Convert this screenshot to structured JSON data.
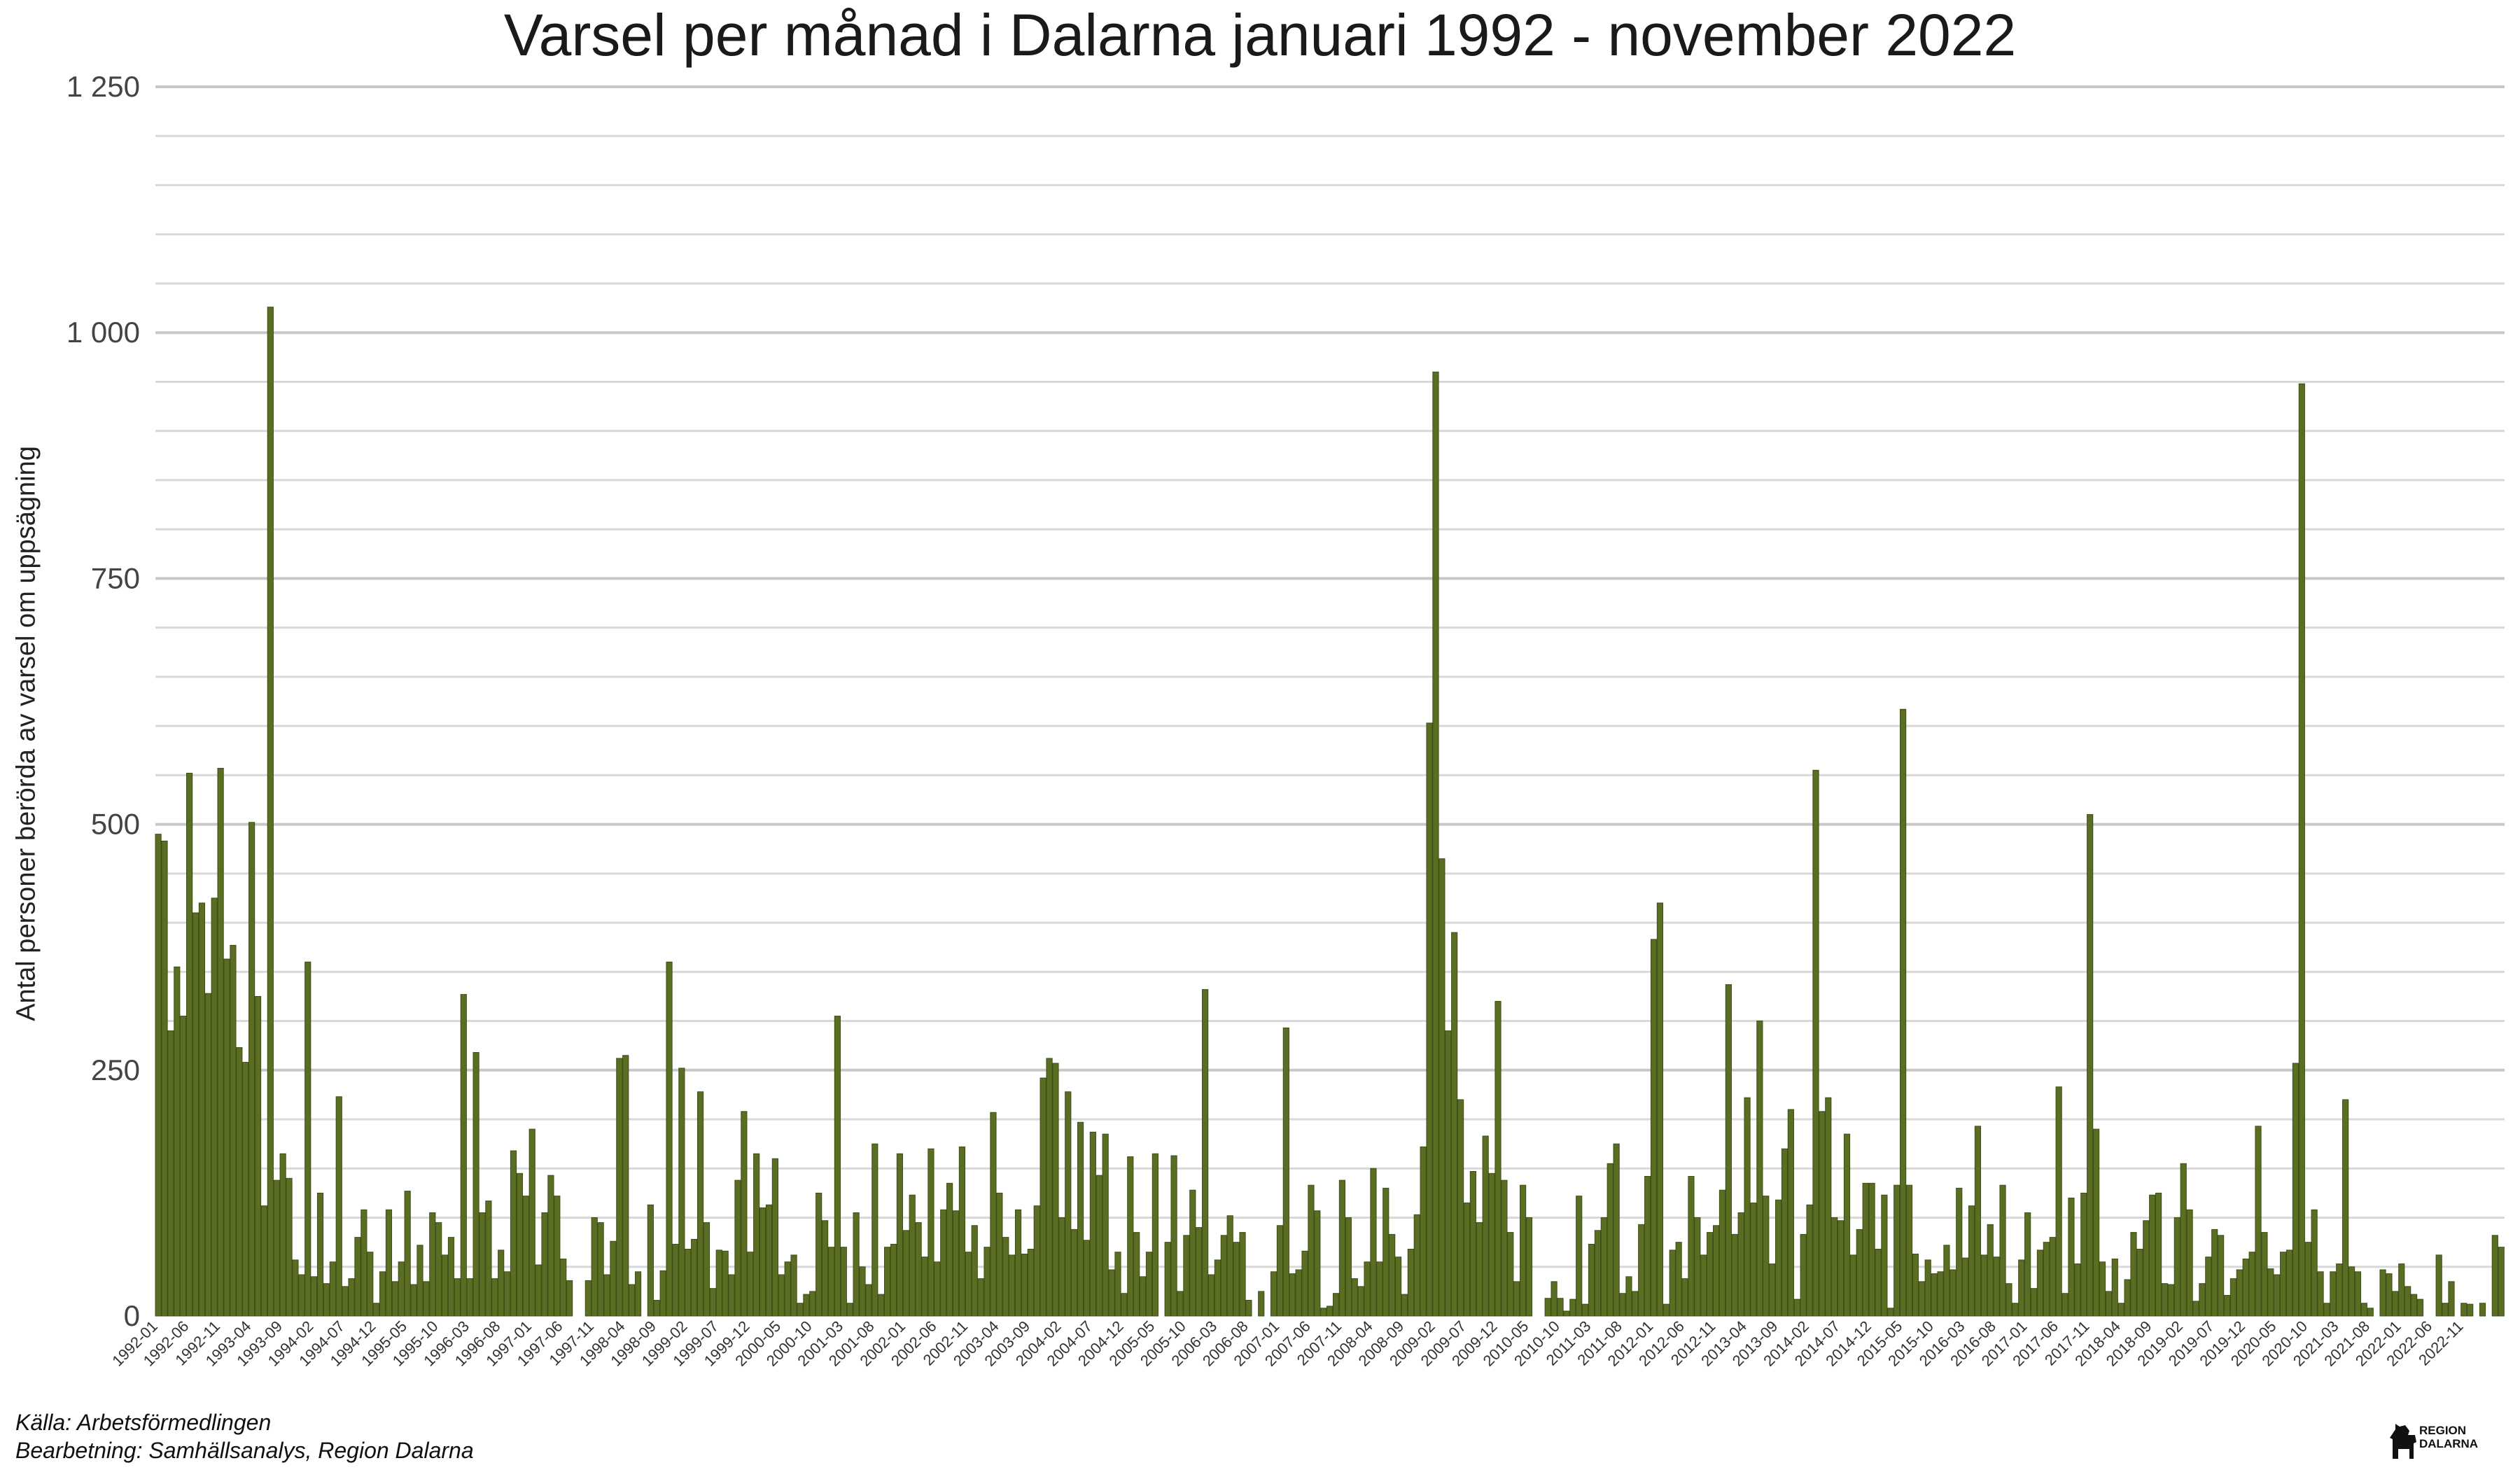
{
  "colors": {
    "bar": "#5a6e23",
    "bar_stroke": "#3e4d16",
    "grid_major": "#c8c8c8",
    "grid_minor": "#d9d9d9"
  },
  "logo": {
    "icon": "dala-horse-icon",
    "text_line1": "REGION",
    "text_line2": "DALARNA"
  },
  "footer": {
    "source": "Källa: Arbetsförmedlingen",
    "processing": "Bearbetning: Samhällsanalys, Region Dalarna"
  },
  "chart_data": {
    "type": "bar",
    "title": "Varsel per månad i Dalarna januari 1992 - november 2022",
    "xlabel": "",
    "ylabel": "Antal personer berörda av varsel om uppsägning",
    "ylim": [
      0,
      1250
    ],
    "yticks": [
      0,
      250,
      500,
      750,
      1000,
      1250
    ],
    "ytick_labels": [
      "0",
      "250",
      "500",
      "750",
      "1 000",
      "1 250"
    ],
    "grid": true,
    "start": "1992-01",
    "end": "2022-11",
    "x_tick_labels": [
      "1992-01",
      "1992-06",
      "1992-11",
      "1993-04",
      "1993-09",
      "1994-02",
      "1994-07",
      "1994-12",
      "1995-05",
      "1995-10",
      "1996-03",
      "1996-08",
      "1997-01",
      "1997-06",
      "1997-11",
      "1998-04",
      "1998-09",
      "1999-02",
      "1999-07",
      "1999-12",
      "2000-05",
      "2000-10",
      "2001-03",
      "2001-08",
      "2002-01",
      "2002-06",
      "2002-11",
      "2003-04",
      "2003-09",
      "2004-02",
      "2004-07",
      "2004-12",
      "2005-05",
      "2005-10",
      "2006-03",
      "2006-08",
      "2007-01",
      "2007-06",
      "2007-11",
      "2008-04",
      "2008-09",
      "2009-02",
      "2009-07",
      "2009-12",
      "2010-05",
      "2010-10",
      "2011-03",
      "2011-08",
      "2012-01",
      "2012-06",
      "2012-11",
      "2013-04",
      "2013-09",
      "2014-02",
      "2014-07",
      "2014-12",
      "2015-05",
      "2015-10",
      "2016-03",
      "2016-08",
      "2017-01",
      "2017-06",
      "2017-11",
      "2018-04",
      "2018-09",
      "2019-02",
      "2019-07",
      "2019-12",
      "2020-05",
      "2020-10",
      "2021-03",
      "2021-08",
      "2022-01",
      "2022-06",
      "2022-11"
    ],
    "values": [
      490,
      483,
      290,
      355,
      305,
      552,
      410,
      420,
      328,
      425,
      557,
      363,
      377,
      273,
      258,
      502,
      325,
      112,
      1026,
      138,
      165,
      140,
      57,
      42,
      360,
      40,
      125,
      33,
      55,
      223,
      30,
      38,
      80,
      108,
      65,
      13,
      45,
      108,
      35,
      55,
      127,
      32,
      72,
      35,
      105,
      95,
      62,
      80,
      38,
      327,
      38,
      268,
      105,
      117,
      38,
      67,
      45,
      168,
      145,
      122,
      190,
      52,
      105,
      143,
      122,
      58,
      36,
      0,
      0,
      36,
      100,
      95,
      42,
      76,
      262,
      265,
      32,
      45,
      0,
      113,
      16,
      46,
      360,
      73,
      252,
      68,
      78,
      228,
      95,
      28,
      67,
      66,
      42,
      138,
      208,
      65,
      165,
      110,
      113,
      160,
      42,
      55,
      62,
      13,
      22,
      25,
      125,
      97,
      70,
      305,
      70,
      13,
      105,
      50,
      32,
      175,
      22,
      70,
      73,
      165,
      87,
      123,
      95,
      60,
      170,
      55,
      108,
      135,
      107,
      172,
      65,
      92,
      38,
      70,
      207,
      125,
      80,
      62,
      108,
      63,
      68,
      112,
      242,
      262,
      257,
      100,
      228,
      88,
      197,
      77,
      187,
      143,
      185,
      47,
      65,
      23,
      162,
      85,
      40,
      65,
      165,
      0,
      75,
      163,
      25,
      82,
      128,
      90,
      332,
      42,
      57,
      82,
      102,
      75,
      85,
      16,
      0,
      25,
      0,
      45,
      92,
      293,
      43,
      47,
      66,
      133,
      107,
      8,
      10,
      23,
      138,
      100,
      38,
      30,
      55,
      150,
      55,
      130,
      83,
      60,
      22,
      68,
      103,
      172,
      603,
      960,
      465,
      290,
      390,
      220,
      115,
      147,
      95,
      183,
      145,
      320,
      138,
      85,
      35,
      133,
      100,
      0,
      0,
      18,
      35,
      18,
      5,
      17,
      122,
      12,
      73,
      87,
      100,
      155,
      175,
      23,
      40,
      25,
      93,
      142,
      383,
      420,
      12,
      67,
      75,
      38,
      142,
      100,
      62,
      85,
      92,
      128,
      337,
      83,
      105,
      222,
      115,
      300,
      122,
      53,
      118,
      170,
      210,
      17,
      83,
      113,
      555,
      208,
      222,
      100,
      97,
      185,
      62,
      88,
      135,
      135,
      68,
      123,
      8,
      133,
      617,
      133,
      63,
      35,
      57,
      43,
      45,
      72,
      47,
      130,
      59,
      112,
      193,
      62,
      93,
      60,
      133,
      33,
      13,
      57,
      105,
      28,
      67,
      75,
      80,
      233,
      23,
      120,
      53,
      125,
      510,
      190,
      55,
      25,
      58,
      13,
      37,
      85,
      68,
      97,
      123,
      125,
      33,
      32,
      100,
      155,
      108,
      15,
      33,
      60,
      88,
      82,
      21,
      38,
      47,
      58,
      65,
      193,
      85,
      48,
      42,
      65,
      67,
      257,
      948,
      75,
      108,
      45,
      13,
      45,
      53,
      220,
      50,
      45,
      13,
      8,
      0,
      47,
      43,
      25,
      53,
      30,
      22,
      17,
      0,
      0,
      62,
      13,
      35,
      0,
      13,
      12,
      0,
      13,
      0,
      82,
      70
    ]
  }
}
